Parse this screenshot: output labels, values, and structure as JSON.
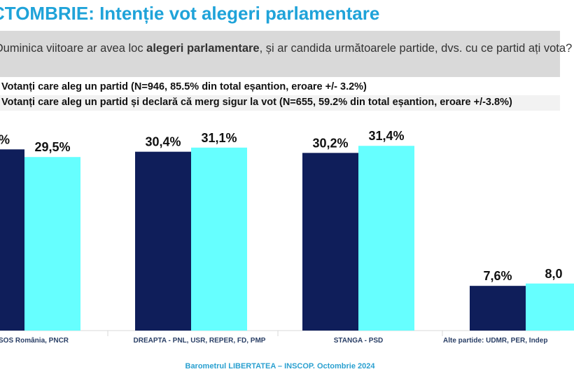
{
  "title": "CTOMBRIE: Intenție vot alegeri parlamentare",
  "question": {
    "before": "Duminica viitoare ar avea loc ",
    "bold": "alegeri parlamentare",
    "after": ", și ar candida următoarele partide, dvs. cu ce partid ați vota?"
  },
  "colors": {
    "series1": "#0f1e5a",
    "series2": "#66ffff",
    "title": "#1fa3d9",
    "footer": "#2aa0d0"
  },
  "chart_data": {
    "type": "bar",
    "title": "",
    "xlabel": "",
    "ylabel": "",
    "categories": [
      "SOS România, PNCR",
      "DREAPTA - PNL, USR, REPER, FD, PMP",
      "STANGA - PSD",
      "Alte partide: UDMR, PER, Indep"
    ],
    "series": [
      {
        "name": "Votanți care aleg un partid (N=946, 85.5% din total eșantion, eroare +/- 3.2%)",
        "values": [
          30.8,
          30.4,
          30.2,
          7.6
        ],
        "labels": [
          "%",
          "30,4%",
          "30,2%",
          "7,6%"
        ]
      },
      {
        "name": "Votanți care aleg un partid și declară că merg sigur la vot (N=655, 59.2% din total eșantion, eroare +/-3.8%)",
        "values": [
          29.5,
          31.1,
          31.4,
          8.0
        ],
        "labels": [
          "29,5%",
          "31,1%",
          "31,4%",
          "8,0"
        ]
      }
    ],
    "ylim": [
      0,
      40
    ],
    "grid": false,
    "legend": "top-left"
  },
  "footer": "Barometrul LIBERTATEA – INSCOP. Octombrie 2024"
}
